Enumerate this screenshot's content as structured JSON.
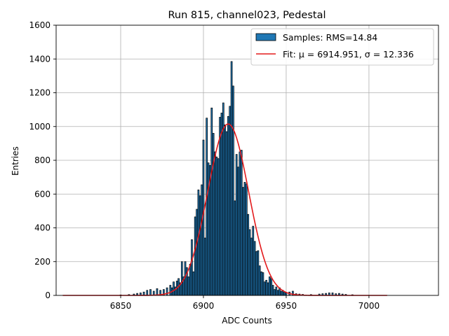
{
  "chart_data": {
    "type": "bar",
    "title": "Run 815, channel023, Pedestal",
    "xlabel": "ADC Counts",
    "ylabel": "Entries",
    "xlim": [
      6811,
      7042
    ],
    "ylim": [
      0,
      1600
    ],
    "xticks": [
      6850,
      6900,
      6950,
      7000
    ],
    "yticks": [
      0,
      200,
      400,
      600,
      800,
      1000,
      1200,
      1400,
      1600
    ],
    "grid": true,
    "legend_position": "top-right",
    "colors": {
      "bar_fill": "#1f77b4",
      "bar_edge": "#000000",
      "fit_line": "#e31a1c",
      "grid": "#b0b0b0"
    },
    "series": [
      {
        "name": "Samples: RMS=14.84",
        "kind": "histogram",
        "x": [
          6850,
          6855,
          6858,
          6860,
          6862,
          6864,
          6866,
          6868,
          6870,
          6872,
          6874,
          6876,
          6878,
          6880,
          6881,
          6882,
          6883,
          6884,
          6885,
          6886,
          6887,
          6888,
          6889,
          6890,
          6891,
          6892,
          6893,
          6894,
          6895,
          6896,
          6897,
          6898,
          6899,
          6900,
          6901,
          6902,
          6903,
          6904,
          6905,
          6906,
          6907,
          6908,
          6909,
          6910,
          6911,
          6912,
          6913,
          6914,
          6915,
          6916,
          6917,
          6918,
          6919,
          6920,
          6921,
          6922,
          6923,
          6924,
          6925,
          6926,
          6927,
          6928,
          6929,
          6930,
          6931,
          6932,
          6933,
          6934,
          6935,
          6936,
          6937,
          6938,
          6939,
          6940,
          6941,
          6942,
          6943,
          6944,
          6945,
          6946,
          6947,
          6948,
          6949,
          6950,
          6952,
          6954,
          6956,
          6958,
          6960,
          6965,
          6970,
          6972,
          6974,
          6976,
          6978,
          6980,
          6982,
          6984,
          6986,
          6990
        ],
        "values": [
          3,
          5,
          8,
          12,
          15,
          20,
          30,
          35,
          25,
          40,
          30,
          35,
          45,
          60,
          45,
          80,
          50,
          85,
          100,
          75,
          200,
          110,
          200,
          165,
          110,
          185,
          330,
          140,
          465,
          510,
          625,
          590,
          655,
          920,
          340,
          1050,
          785,
          770,
          1110,
          960,
          850,
          820,
          810,
          1055,
          1080,
          1140,
          1010,
          970,
          1060,
          1120,
          1385,
          1240,
          560,
          835,
          760,
          850,
          860,
          640,
          670,
          660,
          480,
          390,
          340,
          410,
          320,
          260,
          265,
          175,
          140,
          135,
          80,
          90,
          75,
          110,
          100,
          60,
          35,
          50,
          30,
          45,
          25,
          30,
          20,
          15,
          20,
          25,
          10,
          8,
          6,
          5,
          8,
          10,
          12,
          15,
          15,
          10,
          12,
          8,
          6,
          4
        ]
      },
      {
        "name": "Fit: μ = 6914.951, σ = 12.336",
        "kind": "gaussian",
        "mu": 6914.951,
        "sigma": 12.336,
        "amplitude": 1015,
        "x_range": [
          6815,
          7011
        ]
      }
    ]
  }
}
